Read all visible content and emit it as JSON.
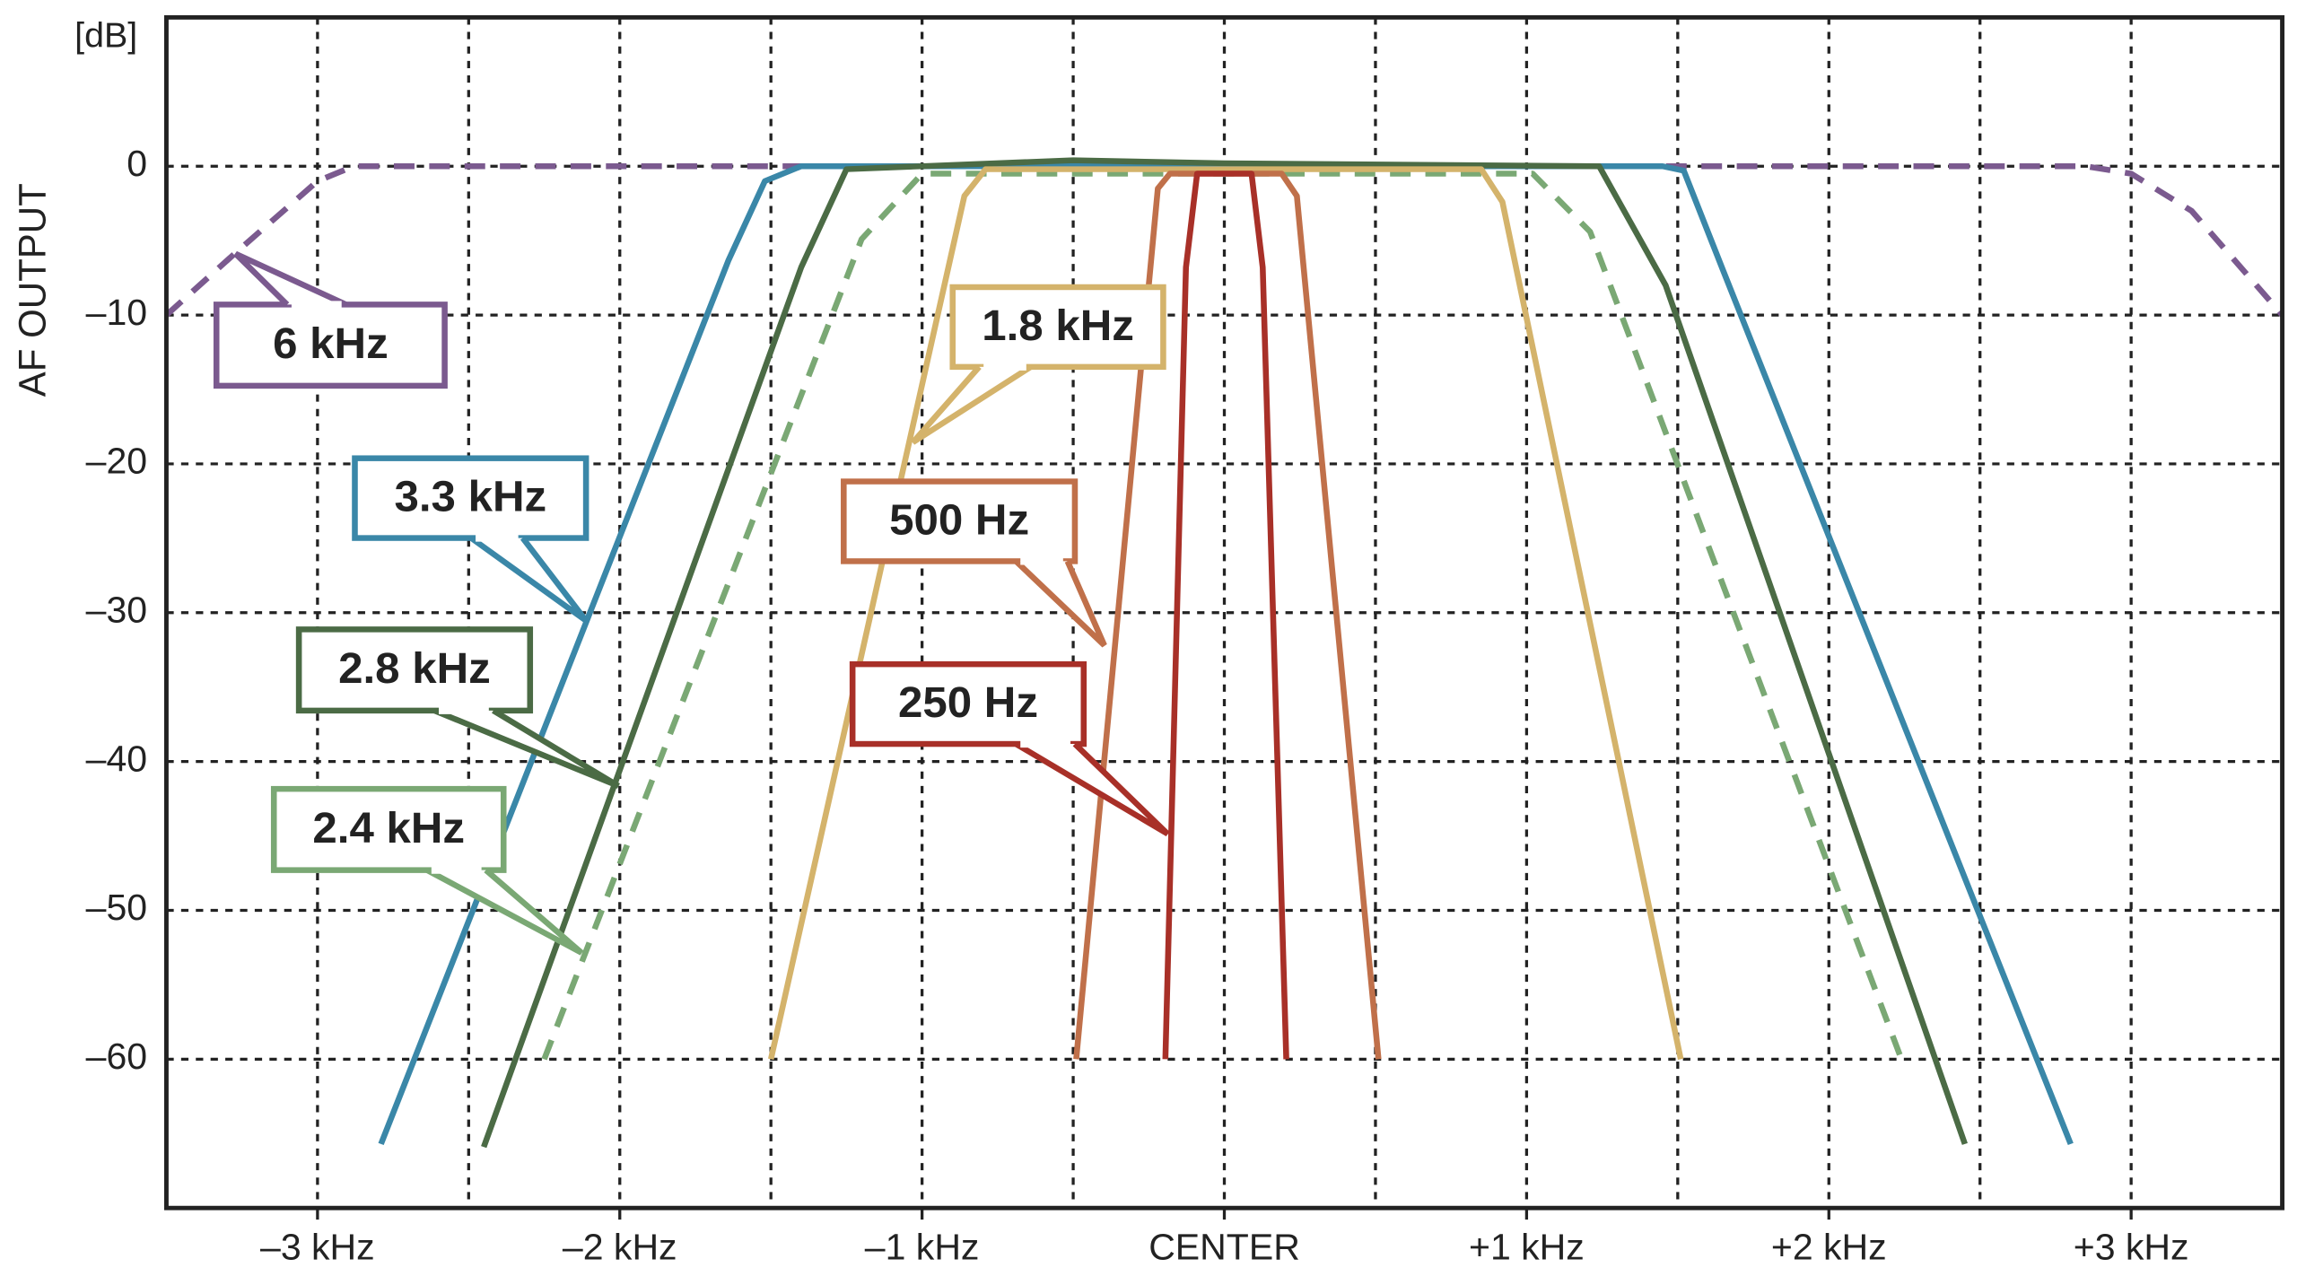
{
  "chart_data": {
    "type": "line",
    "y_label": "AF OUTPUT",
    "y_unit": "[dB]",
    "xlim": [
      -3.5,
      3.5
    ],
    "ylim": [
      -70,
      10
    ],
    "xticks": [
      {
        "value": -3,
        "label": "–3 kHz"
      },
      {
        "value": -2,
        "label": "–2 kHz"
      },
      {
        "value": -1,
        "label": "–1 kHz"
      },
      {
        "value": 0,
        "label": "CENTER"
      },
      {
        "value": 1,
        "label": "+1 kHz"
      },
      {
        "value": 2,
        "label": "+2 kHz"
      },
      {
        "value": 3,
        "label": "+3 kHz"
      }
    ],
    "xgrid_minor": [
      -2.5,
      -1.5,
      -0.5,
      0.5,
      1.5,
      2.5
    ],
    "yticks": [
      0,
      {
        "value": -10,
        "label": "–10"
      },
      {
        "value": -20,
        "label": "–20"
      },
      {
        "value": -30,
        "label": "–30"
      },
      {
        "value": -40,
        "label": "–40"
      },
      {
        "value": -50,
        "label": "–50"
      },
      {
        "value": -60,
        "label": "–60"
      }
    ],
    "grid": true,
    "series": [
      {
        "name": "6 kHz",
        "color": "#7b5a8f",
        "dashed": true,
        "x": [
          -3.5,
          -3.27,
          -3,
          -2.88,
          2.85,
          3,
          3.2,
          3.5
        ],
        "values": [
          -10,
          -5.8,
          -1,
          0,
          0,
          -0.5,
          -3,
          -10
        ]
      },
      {
        "name": "3.3 kHz",
        "color": "#3a87a8",
        "dashed": false,
        "x": [
          -2.79,
          -1.64,
          -1.52,
          -1.4,
          1.45,
          1.52,
          1.65,
          2.8
        ],
        "values": [
          -65.7,
          -6.3,
          -1,
          0,
          0,
          -0.3,
          -7,
          -65.7
        ]
      },
      {
        "name": "2.8 kHz",
        "color": "#4b6b45",
        "dashed": false,
        "x": [
          -2.45,
          -1.4,
          -1.25,
          -0.5,
          0,
          1.24,
          1.46,
          2.45
        ],
        "values": [
          -65.9,
          -6.8,
          -0.2,
          0.4,
          0.2,
          0,
          -8,
          -65.7
        ]
      },
      {
        "name": "2.4 kHz",
        "color": "#7aa874",
        "dashed": true,
        "x": [
          -2.25,
          -1.2,
          -1,
          1.02,
          1.21,
          2.24
        ],
        "values": [
          -60,
          -4.9,
          -0.5,
          -0.5,
          -4.4,
          -60
        ]
      },
      {
        "name": "1.8 kHz",
        "color": "#d4b36b",
        "dashed": false,
        "x": [
          -1.5,
          -0.86,
          -0.79,
          0.85,
          0.92,
          1.51
        ],
        "values": [
          -60,
          -2,
          -0.2,
          -0.2,
          -2.4,
          -60
        ]
      },
      {
        "name": "500 Hz",
        "color": "#c0704a",
        "dashed": false,
        "x": [
          -0.49,
          -0.22,
          -0.18,
          0.19,
          0.24,
          0.51
        ],
        "values": [
          -60,
          -1.5,
          -0.5,
          -0.5,
          -2,
          -60
        ]
      },
      {
        "name": "250 Hz",
        "color": "#a83028",
        "dashed": false,
        "x": [
          -0.195,
          -0.127,
          -0.09,
          0.09,
          0.127,
          0.205
        ],
        "values": [
          -60,
          -6.8,
          -0.5,
          -0.5,
          -6.8,
          -60
        ]
      }
    ]
  }
}
